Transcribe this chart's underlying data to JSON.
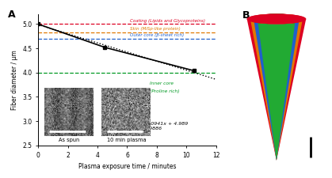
{
  "panel_A_label": "A",
  "panel_B_label": "B",
  "scatter_x": [
    0,
    4.5,
    10.5
  ],
  "scatter_y": [
    5.0,
    4.52,
    4.04
  ],
  "fit_x": [
    0,
    12
  ],
  "fit_y": [
    4.989,
    3.861
  ],
  "fit_label": "y = −0.0941x + 4.989\nR² = 0.9886",
  "hline_red_y": 5.0,
  "hline_orange_y": 4.83,
  "hline_blue_y": 4.7,
  "hline_green_y": 4.0,
  "hline_red_color": "#dd0022",
  "hline_orange_color": "#e07800",
  "hline_blue_color": "#2060cc",
  "hline_green_color": "#009922",
  "label_red": "Coating (Lipids and Glycoproteins)",
  "label_orange": "Skin (MiSp-like protein)",
  "label_blue": "Outer core (β-sheet rich)",
  "label_green_line1": "Inner core",
  "label_green_line2": "(Proline rich)",
  "xlabel": "Plasma exposure time / minutes",
  "ylabel": "Fiber diameter / µm",
  "xlim": [
    0,
    12
  ],
  "ylim": [
    2.5,
    5.2
  ],
  "yticks": [
    2.5,
    3.0,
    3.5,
    4.0,
    4.5,
    5.0
  ],
  "xticks": [
    0,
    2,
    4,
    6,
    8,
    10,
    12
  ],
  "img_label1": "As spun",
  "img_label2": "10 min plasma",
  "cone_red": "#dd0022",
  "cone_orange": "#e07800",
  "cone_blue": "#2060cc",
  "cone_green": "#22aa33"
}
